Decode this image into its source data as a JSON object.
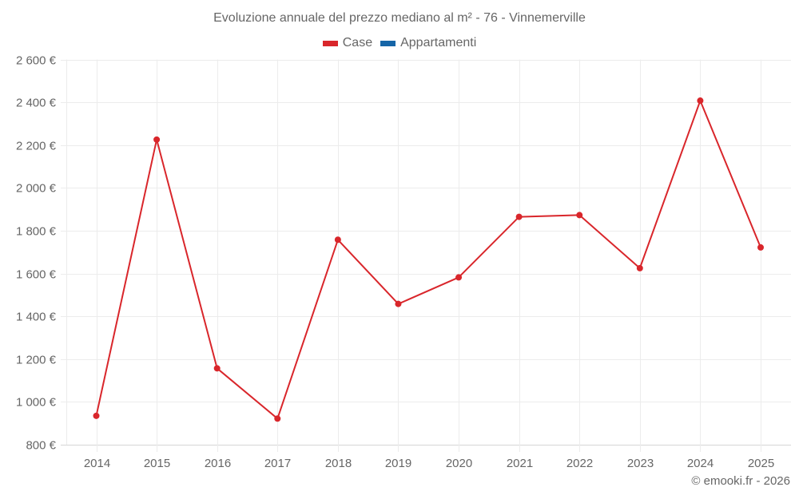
{
  "title": "Evoluzione annuale del prezzo mediano al m² - 76 - Vinnemerville",
  "legend": [
    {
      "label": "Case",
      "color": "#d9262b"
    },
    {
      "label": "Appartamenti",
      "color": "#1565a7"
    }
  ],
  "credit": "© emooki.fr - 2026",
  "chart_data": {
    "type": "line",
    "title": "Evoluzione annuale del prezzo mediano al m² - 76 - Vinnemerville",
    "xlabel": "",
    "ylabel": "",
    "categories": [
      "2014",
      "2015",
      "2016",
      "2017",
      "2018",
      "2019",
      "2020",
      "2021",
      "2022",
      "2023",
      "2024",
      "2025"
    ],
    "series": [
      {
        "name": "Case",
        "color": "#d9262b",
        "values": [
          935,
          2226,
          1157,
          922,
          1758,
          1458,
          1582,
          1865,
          1873,
          1625,
          2408,
          1722
        ]
      },
      {
        "name": "Appartamenti",
        "color": "#1565a7",
        "values": []
      }
    ],
    "ylim": [
      800,
      2600
    ],
    "yticks": [
      800,
      1000,
      1200,
      1400,
      1600,
      1800,
      2000,
      2200,
      2400,
      2600
    ],
    "ytick_labels": [
      "800 €",
      "1 000 €",
      "1 200 €",
      "1 400 €",
      "1 600 €",
      "1 800 €",
      "2 000 €",
      "2 200 €",
      "2 400 €",
      "2 600 €"
    ],
    "grid": true,
    "legend_position": "top"
  }
}
